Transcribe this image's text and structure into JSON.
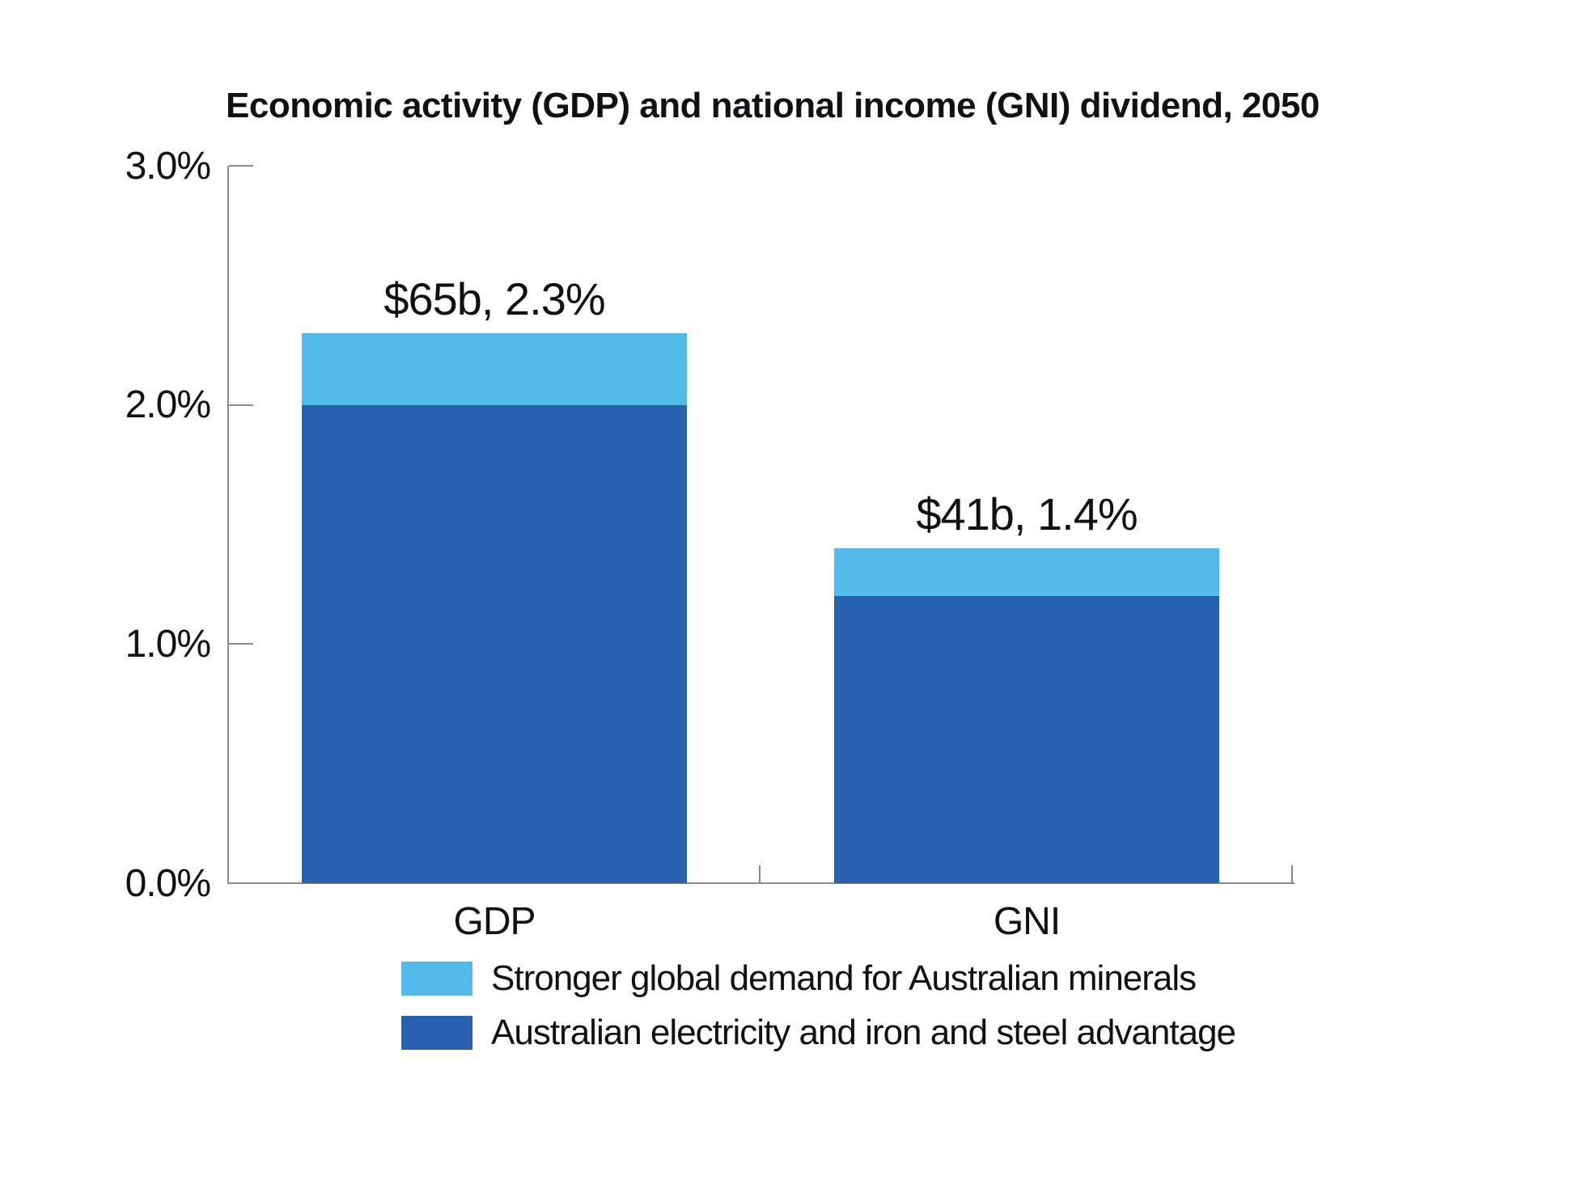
{
  "page": {
    "background": "#ffffff"
  },
  "chart_data": {
    "type": "bar",
    "stacked": true,
    "title": "Economic activity (GDP) and national income (GNI) dividend, 2050",
    "categories": [
      "GDP",
      "GNI"
    ],
    "series": [
      {
        "name": "Australian electricity and iron and steel advantage",
        "color": "#2861AF",
        "values": [
          2.0,
          1.2
        ]
      },
      {
        "name": "Stronger global demand for Australian minerals",
        "color": "#52BAEB",
        "values": [
          0.3,
          0.2
        ]
      }
    ],
    "totals": [
      2.3,
      1.4
    ],
    "bar_total_labels": [
      "$65b, 2.3%",
      "$41b, 1.4%"
    ],
    "yticks": [
      {
        "value": 0,
        "label": "0.0%"
      },
      {
        "value": 1,
        "label": "1.0%"
      },
      {
        "value": 2,
        "label": "2.0%"
      },
      {
        "value": 3,
        "label": "3.0%"
      }
    ],
    "ylim": [
      0,
      3
    ],
    "grid": false,
    "legend_position": "bottom-left",
    "legend": [
      {
        "label": "Stronger global demand for Australian minerals",
        "color": "#52BAEB"
      },
      {
        "label": "Australian electricity and iron and steel advantage",
        "color": "#2861AF"
      }
    ],
    "axis_color": "#8a8a8a",
    "text_color": "#111114"
  }
}
